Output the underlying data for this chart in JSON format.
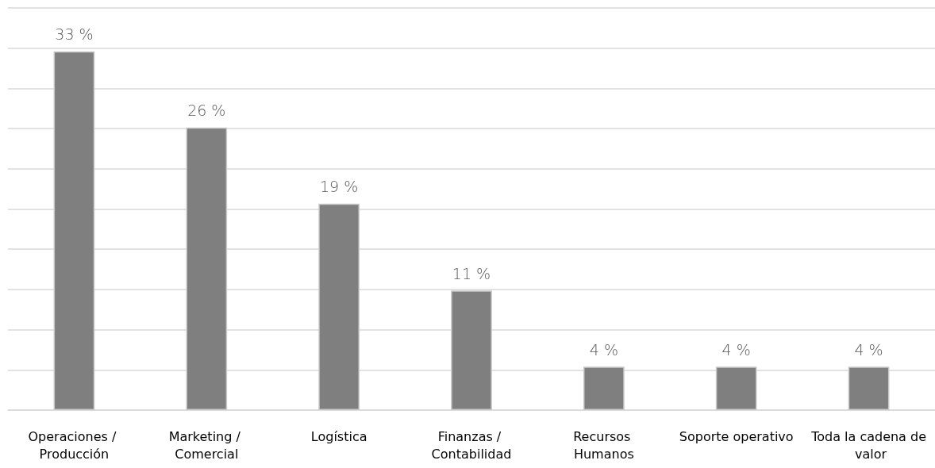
{
  "chart_data": {
    "type": "bar",
    "categories": [
      "Operaciones / Producción",
      "Marketing / Comercial",
      "Logística",
      "Finanzas / Contabilidad",
      "Recursos Humanos",
      "Soporte operativo",
      "Toda la cadena de valor"
    ],
    "values": [
      33,
      26,
      19,
      11,
      4,
      4,
      4
    ],
    "value_labels": [
      "33 %",
      "26 %",
      "19 %",
      "11 %",
      "4 %",
      "4 %",
      "4 %"
    ],
    "color": "#7f7f7f",
    "ylim": [
      0,
      37
    ],
    "yticks": [
      {
        "value": 0,
        "label": null
      },
      {
        "value": 3.7,
        "label": null
      },
      {
        "value": 7.4,
        "label": null
      },
      {
        "value": 11.1,
        "label": null
      },
      {
        "value": 14.8,
        "label": null
      },
      {
        "value": 18.5,
        "label": null
      },
      {
        "value": 22.2,
        "label": null
      },
      {
        "value": 25.9,
        "label": null
      },
      {
        "value": 29.6,
        "label": null
      },
      {
        "value": 33.3,
        "label": null
      },
      {
        "value": 37,
        "label": null
      }
    ],
    "grid": "y",
    "tick_labels": "x"
  }
}
